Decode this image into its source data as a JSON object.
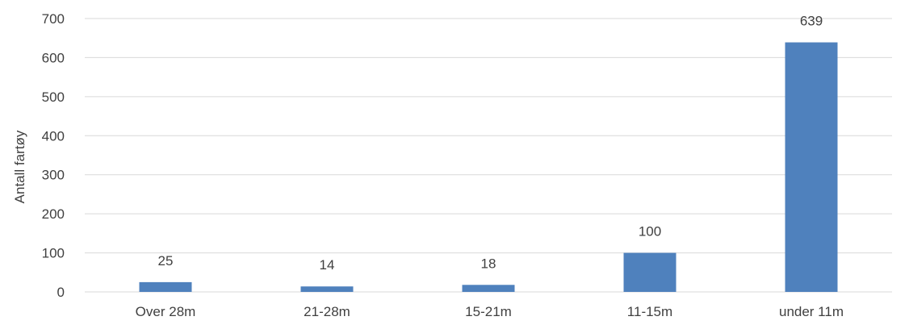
{
  "chart_data": {
    "type": "bar",
    "title": "",
    "xlabel": "",
    "ylabel": "Antall fartøy",
    "categories": [
      "Over 28m",
      "21-28m",
      "15-21m",
      "11-15m",
      "under 11m"
    ],
    "values": [
      25,
      14,
      18,
      100,
      639
    ],
    "data_labels": [
      "25",
      "14",
      "18",
      "100",
      "639"
    ],
    "ylim": [
      0,
      700
    ],
    "yticks": [
      0,
      100,
      200,
      300,
      400,
      500,
      600,
      700
    ],
    "grid": true,
    "legend": "none",
    "bar_color": "#4f81bd",
    "grid_color": "#d9d9d9"
  }
}
